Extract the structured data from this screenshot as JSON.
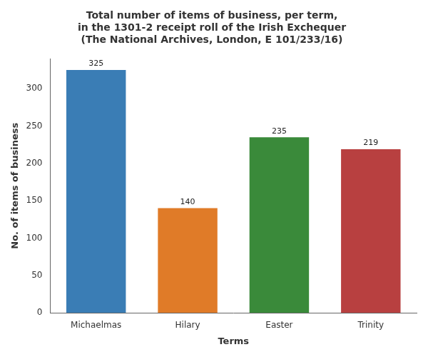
{
  "chart_data": {
    "type": "bar",
    "title": "Total number of items of business, per term,\nin the 1301-2 receipt roll of the Irish Exchequer\n(The National Archives, London, E 101/233/16)",
    "categories": [
      "Michaelmas",
      "Hilary",
      "Easter",
      "Trinity"
    ],
    "values": [
      325,
      140,
      235,
      219
    ],
    "colors": [
      "#3a7db5",
      "#e07b28",
      "#3a8a3a",
      "#b84040"
    ],
    "xlabel": "Terms",
    "ylabel": "No. of items of business",
    "ylim": [
      0,
      340
    ],
    "yticks": [
      0,
      50,
      100,
      150,
      200,
      250,
      300
    ],
    "data_labels": true,
    "grid": false
  }
}
